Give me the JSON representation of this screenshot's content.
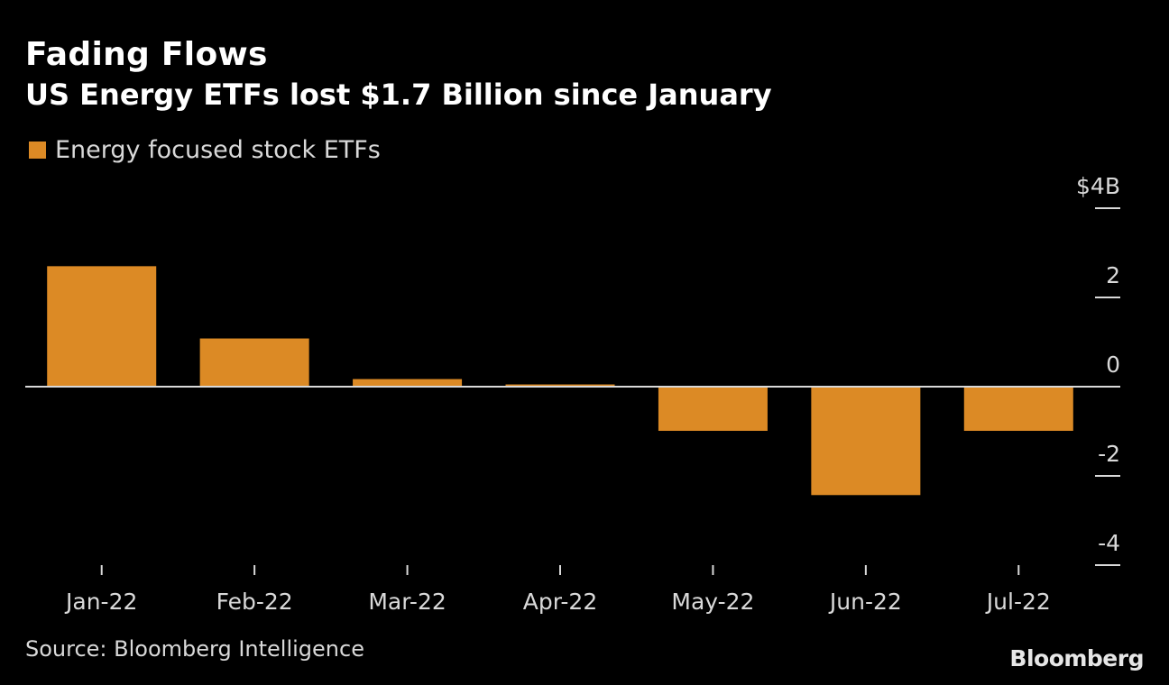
{
  "header": {
    "title": "Fading Flows",
    "subtitle": "US Energy ETFs lost $1.7 Billion since January"
  },
  "footer": {
    "source": "Source: Bloomberg Intelligence",
    "brand": "Bloomberg"
  },
  "chart_data": {
    "type": "bar",
    "title": "Fading Flows",
    "subtitle": "US Energy ETFs lost $1.7 Billion since January",
    "categories": [
      "Jan-22",
      "Feb-22",
      "Mar-22",
      "Apr-22",
      "May-22",
      "Jun-22",
      "Jul-22"
    ],
    "series": [
      {
        "name": "Energy focused stock ETFs",
        "color": "#dc8a25",
        "values": [
          2.7,
          1.08,
          0.17,
          0.05,
          -0.99,
          -2.43,
          -0.99
        ]
      }
    ],
    "ylim": [
      -4,
      4
    ],
    "yticks": [
      4,
      2,
      0,
      -2,
      -4
    ],
    "ytick_labels": [
      "$4B",
      "2",
      "0",
      "-2",
      "-4"
    ],
    "y_axis_side": "right",
    "xlabel": "",
    "ylabel": "",
    "legend_position": "top-left",
    "grid": false,
    "colors": {
      "background": "#000000",
      "text": "#ffffff",
      "muted_text": "#d9d9d9",
      "zero_line": "#d9d9d9"
    }
  }
}
